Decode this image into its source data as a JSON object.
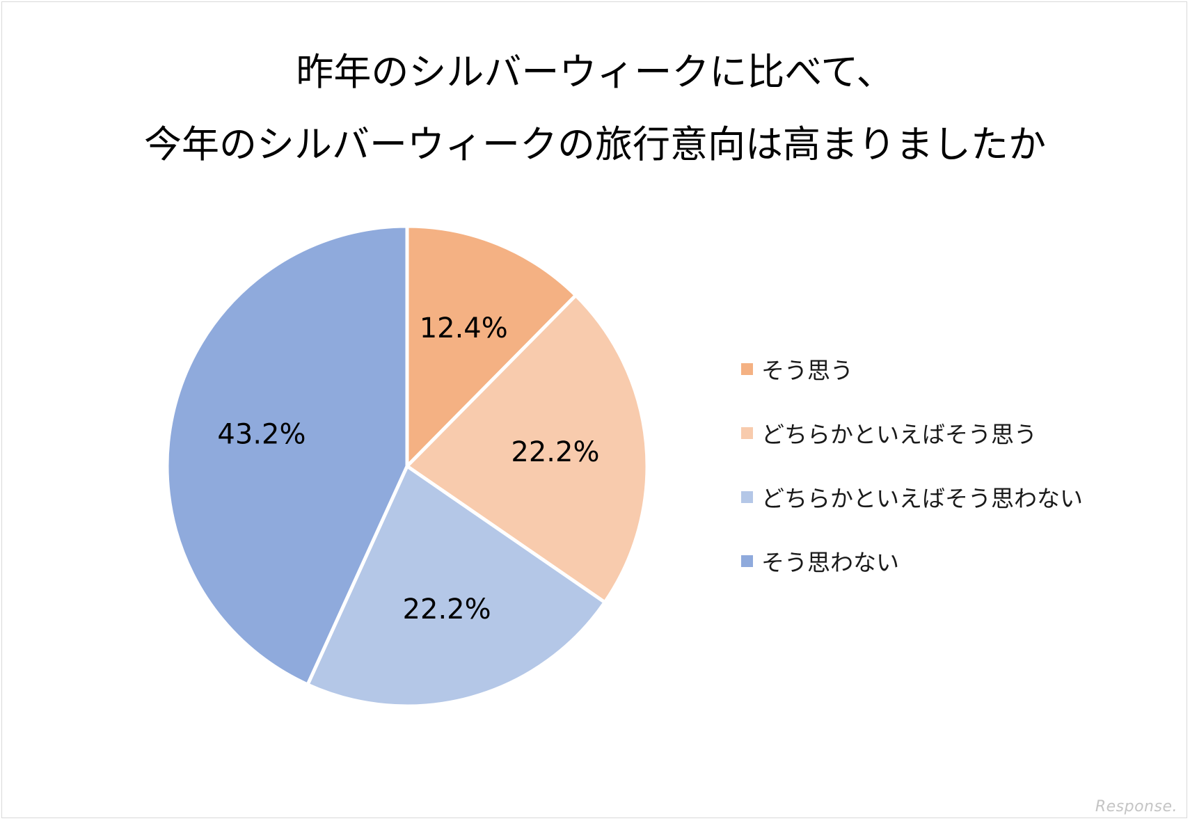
{
  "title": {
    "line1": "昨年のシルバーウィークに比べて、",
    "line2": "今年のシルバーウィークの旅行意向は高まりましたか"
  },
  "chart_data": {
    "type": "pie",
    "start_angle": "12 o'clock",
    "direction": "clockwise",
    "labels": [
      "そう思う",
      "どちらかといえばそう思う",
      "どちらかといえばそう思わない",
      "そう思わない"
    ],
    "values": [
      12.4,
      22.2,
      22.2,
      43.2
    ],
    "value_labels": [
      "12.4%",
      "22.2%",
      "22.2%",
      "43.2%"
    ],
    "colors": [
      "#F4B183",
      "#F8CBAD",
      "#B4C7E7",
      "#8FAADC"
    ],
    "legend_position": "right"
  },
  "watermark": "Response."
}
